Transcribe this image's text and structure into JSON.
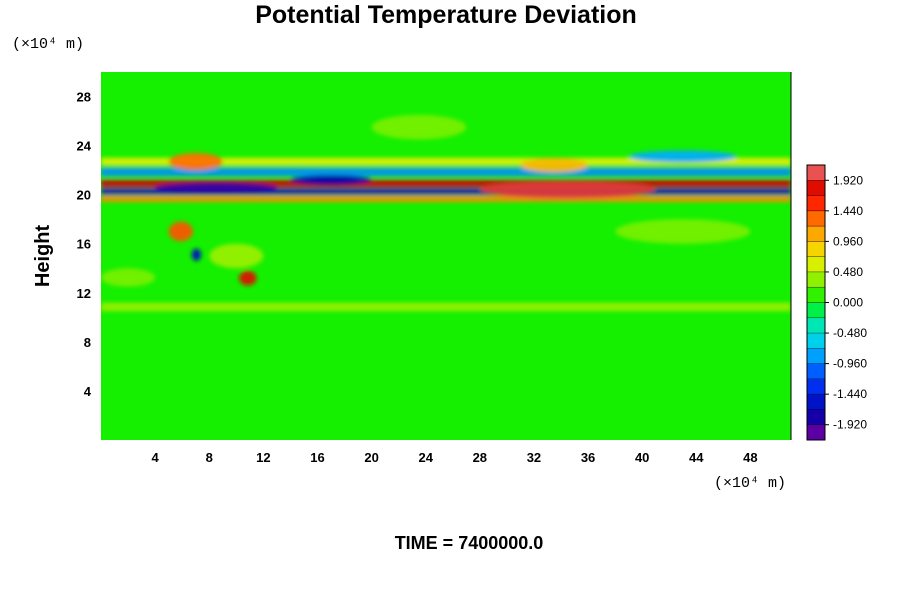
{
  "chart_data": {
    "type": "heatmap",
    "title": "Potential Temperature Deviation",
    "ylabel": "Height",
    "x_unit_label": "(×10⁴ m)",
    "y_unit_label": "(×10⁴ m)",
    "time_label": "TIME = 7400000.0",
    "xlim": [
      0,
      51
    ],
    "ylim": [
      0,
      30
    ],
    "x_ticks": [
      4,
      8,
      12,
      16,
      20,
      24,
      28,
      32,
      36,
      40,
      44,
      48
    ],
    "y_ticks": [
      4,
      8,
      12,
      16,
      20,
      24,
      28
    ],
    "colorbar": {
      "min": -2.16,
      "max": 2.16,
      "step": 0.24,
      "tick_values": [
        1.92,
        1.44,
        0.96,
        0.48,
        0.0,
        -0.48,
        -0.96,
        -1.44,
        -1.92
      ],
      "tick_labels": [
        "1.920",
        "1.440",
        "0.960",
        "0.480",
        "0.000",
        "-0.480",
        "-0.960",
        "-1.440",
        "-1.920"
      ]
    },
    "features": [
      {
        "type": "band",
        "x": [
          0,
          51
        ],
        "y": [
          20.6,
          21.2
        ],
        "value": 1.9
      },
      {
        "type": "band",
        "x": [
          0,
          51
        ],
        "y": [
          20.0,
          20.5
        ],
        "value": -1.6
      },
      {
        "type": "band",
        "x": [
          0,
          51
        ],
        "y": [
          19.4,
          19.9
        ],
        "value": 1.2
      },
      {
        "type": "band",
        "x": [
          0,
          51
        ],
        "y": [
          21.5,
          22.2
        ],
        "value": -0.9
      },
      {
        "type": "band",
        "x": [
          0,
          51
        ],
        "y": [
          22.4,
          23.0
        ],
        "value": 0.7
      },
      {
        "type": "band",
        "x": [
          0,
          51
        ],
        "y": [
          10.5,
          11.2
        ],
        "value": 0.4
      },
      {
        "type": "blob",
        "x": [
          28,
          41
        ],
        "y": [
          19.7,
          21.1
        ],
        "value": 2.0
      },
      {
        "type": "blob",
        "x": [
          4,
          13
        ],
        "y": [
          20.1,
          21.0
        ],
        "value": -1.9
      },
      {
        "type": "blob",
        "x": [
          14,
          20
        ],
        "y": [
          20.8,
          21.6
        ],
        "value": -1.7
      },
      {
        "type": "blob",
        "x": [
          5,
          9
        ],
        "y": [
          22.0,
          23.4
        ],
        "value": 1.3
      },
      {
        "type": "blob",
        "x": [
          31,
          36
        ],
        "y": [
          21.8,
          23.0
        ],
        "value": 1.0
      },
      {
        "type": "blob",
        "x": [
          39,
          47
        ],
        "y": [
          22.6,
          23.6
        ],
        "value": -0.8
      },
      {
        "type": "blob",
        "x": [
          5.0,
          6.8
        ],
        "y": [
          16.2,
          17.8
        ],
        "value": 1.4
      },
      {
        "type": "blob",
        "x": [
          6.7,
          7.4
        ],
        "y": [
          14.6,
          15.6
        ],
        "value": -1.6
      },
      {
        "type": "blob",
        "x": [
          10.2,
          11.5
        ],
        "y": [
          12.6,
          13.8
        ],
        "value": 1.8
      },
      {
        "type": "blob",
        "x": [
          8.0,
          12.0
        ],
        "y": [
          14.0,
          16.0
        ],
        "value": 0.4
      },
      {
        "type": "blob",
        "x": [
          20,
          27
        ],
        "y": [
          24.5,
          26.5
        ],
        "value": 0.3
      },
      {
        "type": "blob",
        "x": [
          38,
          48
        ],
        "y": [
          16.0,
          18.0
        ],
        "value": 0.3
      },
      {
        "type": "blob",
        "x": [
          0,
          4
        ],
        "y": [
          12.5,
          14.0
        ],
        "value": 0.3
      }
    ]
  }
}
